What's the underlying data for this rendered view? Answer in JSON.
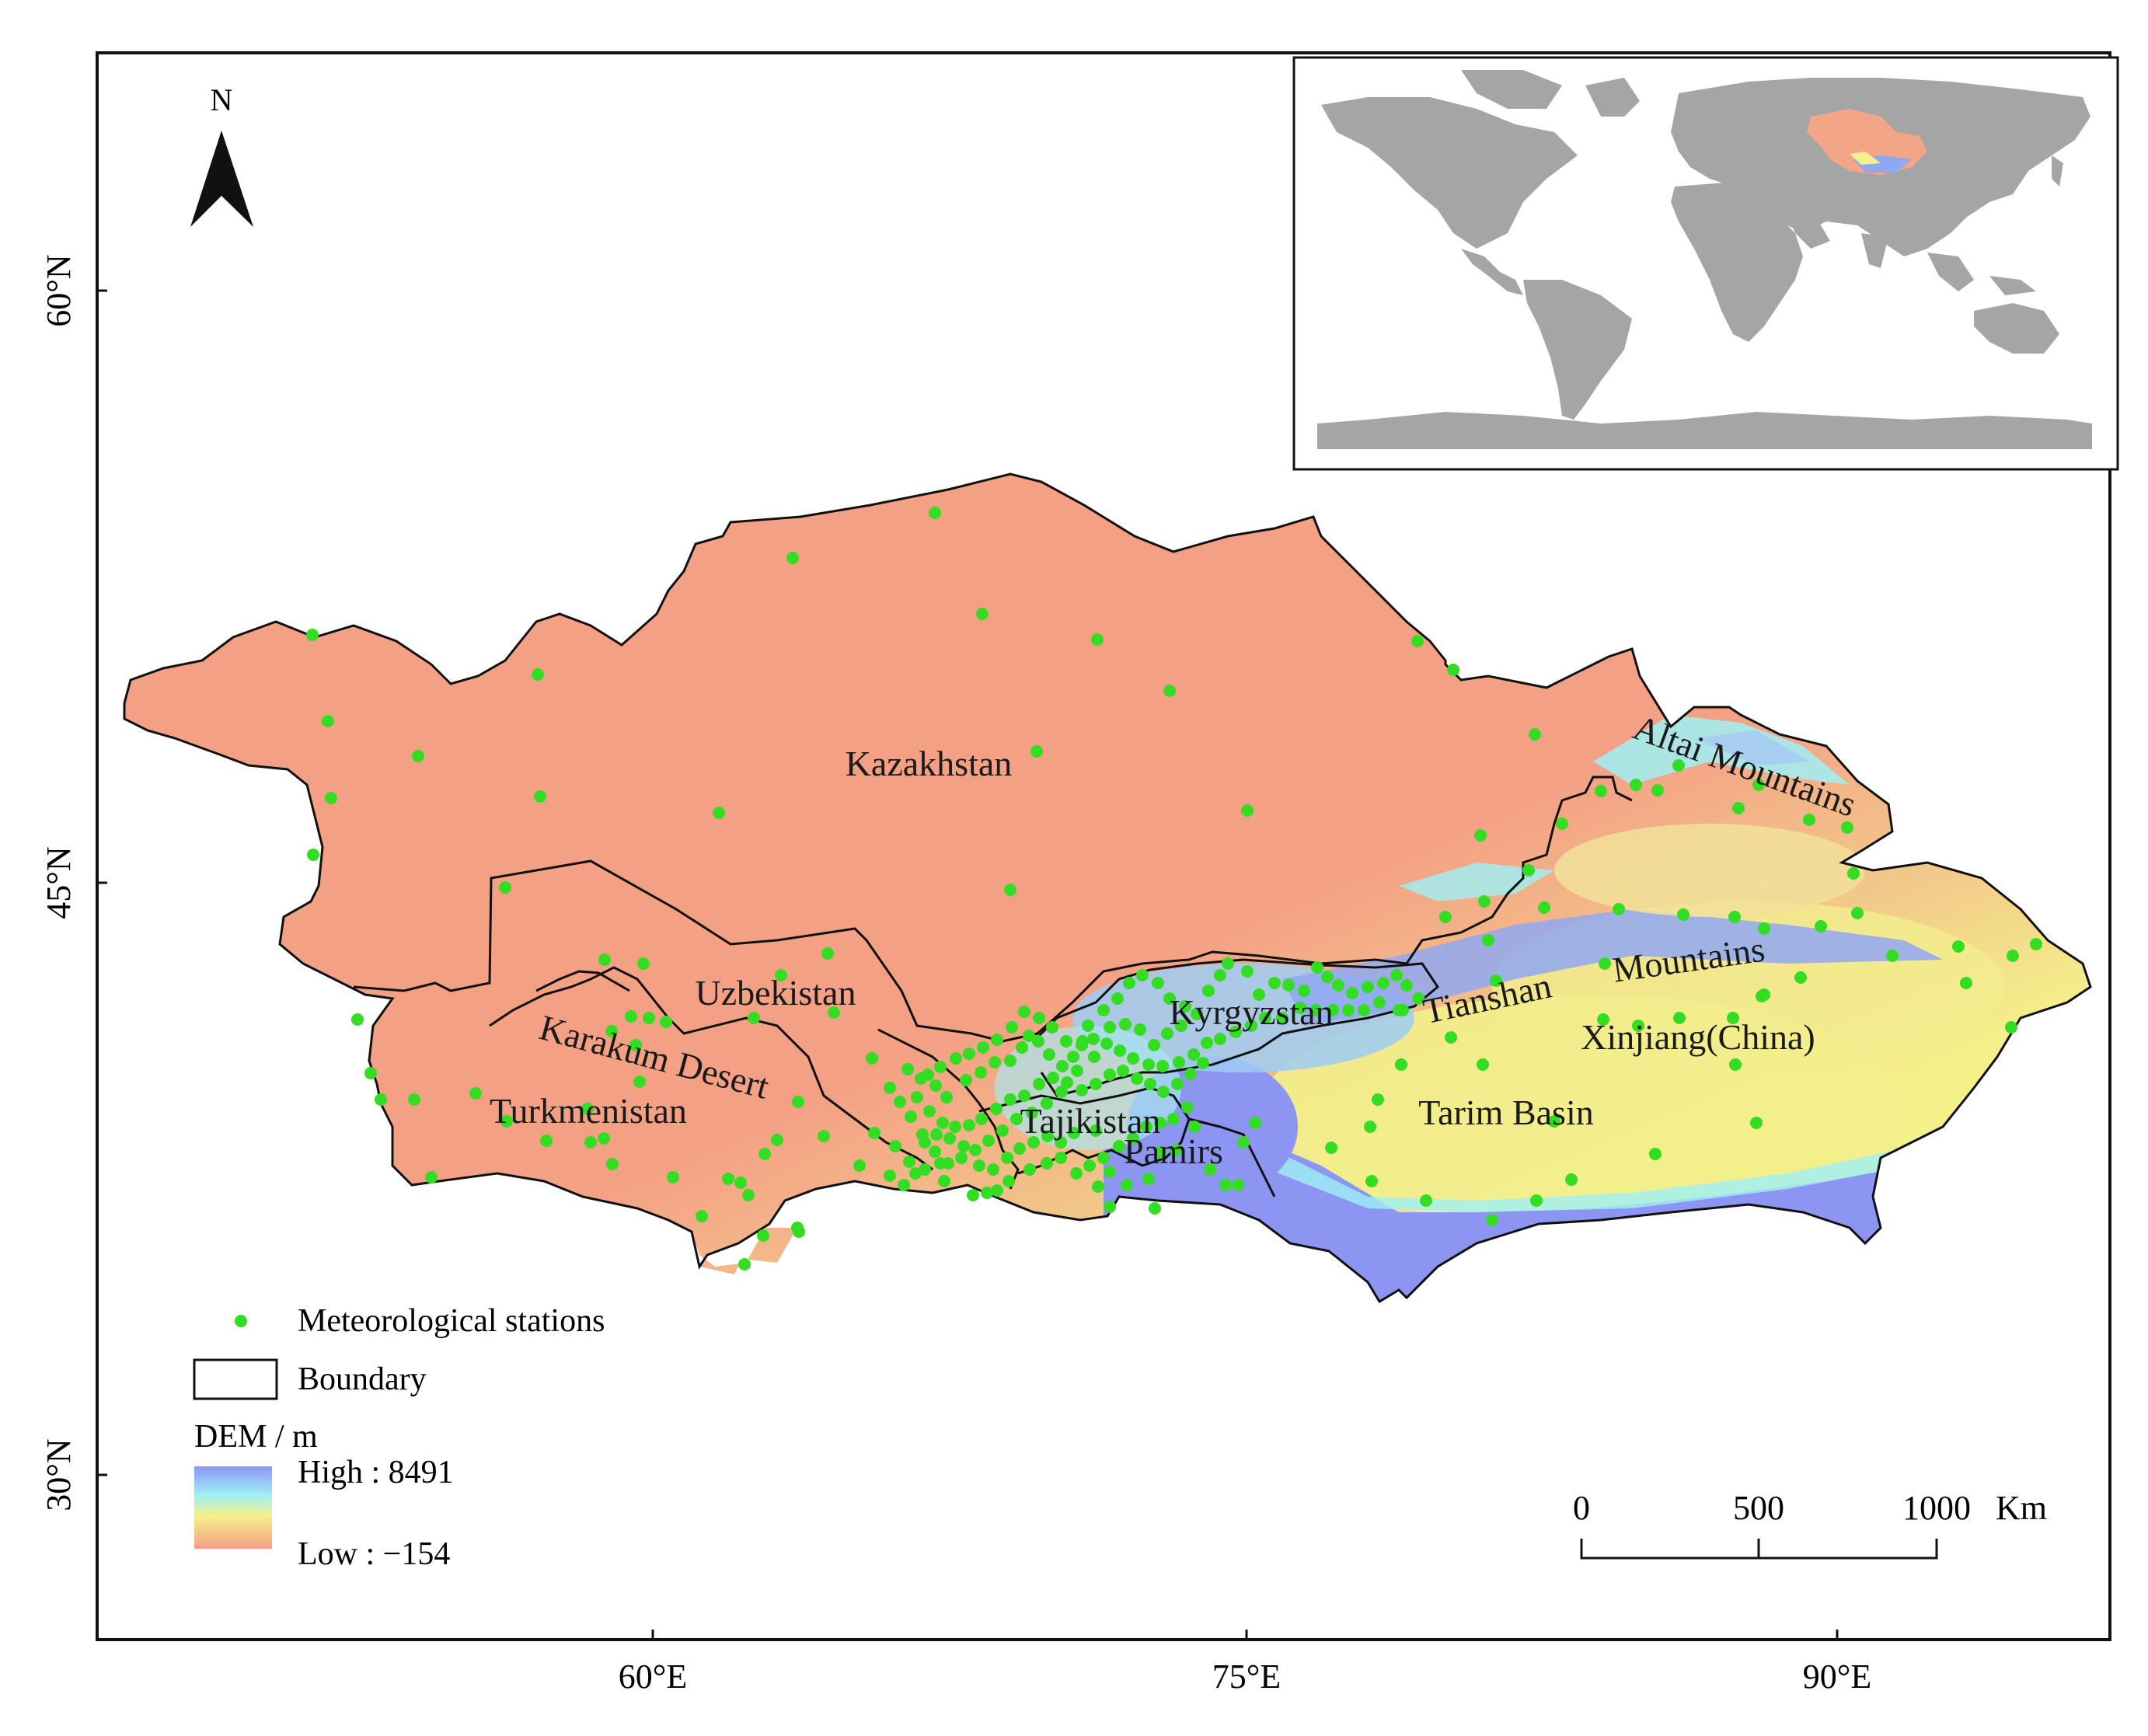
{
  "north_arrow": {
    "label": "N"
  },
  "axes": {
    "x_ticks": [
      "60°E",
      "75°E",
      "90°E"
    ],
    "y_ticks": [
      "60°N",
      "45°N",
      "30°N"
    ]
  },
  "place_labels": {
    "kazakhstan": "Kazakhstan",
    "uzbekistan": "Uzbekistan",
    "turkmenistan": "Turkmenistan",
    "karakum_desert": "Karakum Desert",
    "kyrgyzstan": "Kyrgyzstan",
    "tajikistan": "Tajikistan",
    "pamirs": "Pamirs",
    "tianshan": "Tianshan",
    "mountains": "Mountains",
    "xinjiang": "Xinjiang(China)",
    "tarim_basin": "Tarim Basin",
    "altai_mountains": "Altai Mountains"
  },
  "legend": {
    "stations_label": "Meteorological stations",
    "boundary_label": "Boundary",
    "dem_title": "DEM / m",
    "dem_high": "High : 8491",
    "dem_low": "Low : −154"
  },
  "scale_bar": {
    "ticks": [
      "0",
      "500",
      "1000"
    ],
    "unit": "Km"
  },
  "colors": {
    "station": "#33dd22",
    "dem_high": "#8c96f2",
    "dem_mid_cyan": "#9ff0f5",
    "dem_mid_yellow": "#f5f08a",
    "dem_low": "#f49f86",
    "lowland": "#f4a085",
    "inset_land": "#a5a5a5",
    "inset_highlight": "#f3a587"
  }
}
